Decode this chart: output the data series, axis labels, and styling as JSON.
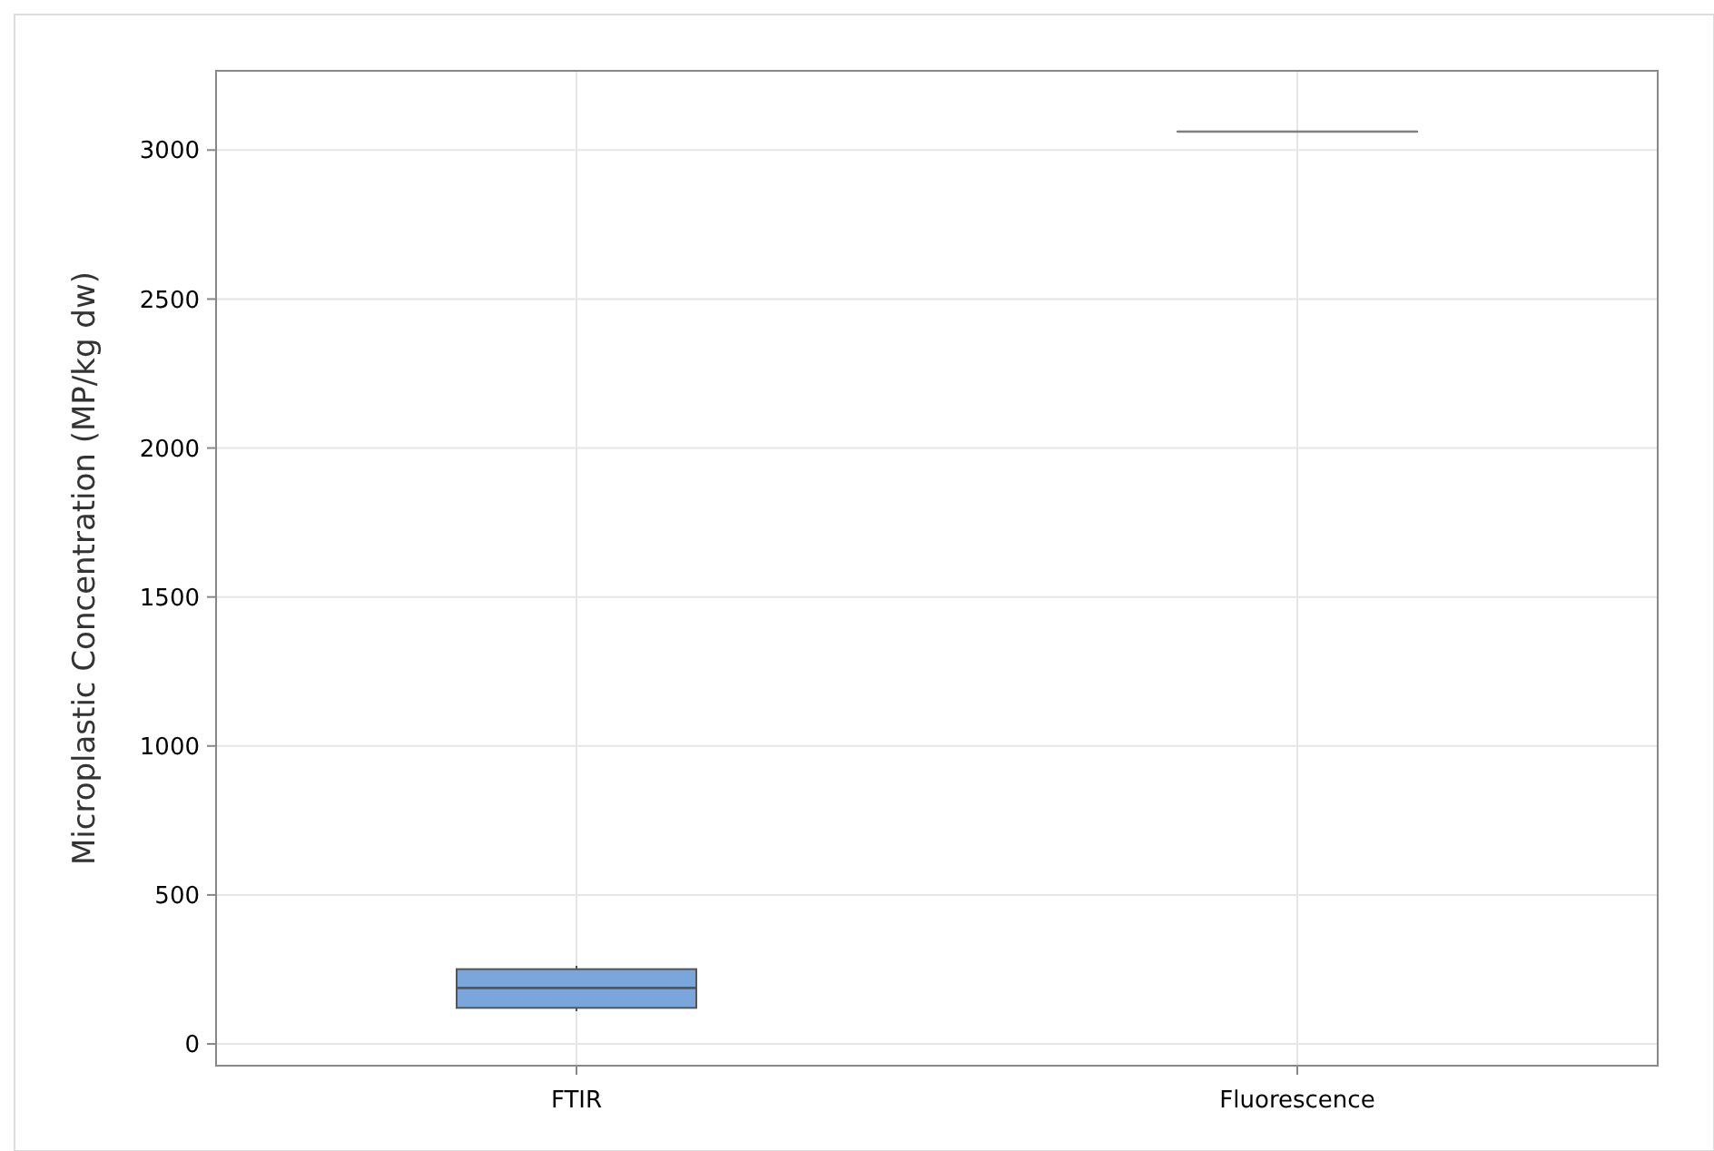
{
  "chart_data": {
    "type": "box",
    "ylabel": "Microplastic Concentration (MP/kg dw)",
    "categories": [
      "FTIR",
      "Fluorescence"
    ],
    "colors": [
      "#7aa6dc",
      "#808080"
    ],
    "boxes": [
      {
        "low": 110,
        "q1": 121,
        "median": 188,
        "q3": 251,
        "high": 262
      },
      {
        "low": 3062,
        "q1": 3062,
        "median": 3062,
        "q3": 3062,
        "high": 3062
      }
    ],
    "ylim": [
      -73,
      3266
    ],
    "yticks": [
      0,
      500,
      1000,
      1500,
      2000,
      2500,
      3000
    ],
    "grid": true
  }
}
